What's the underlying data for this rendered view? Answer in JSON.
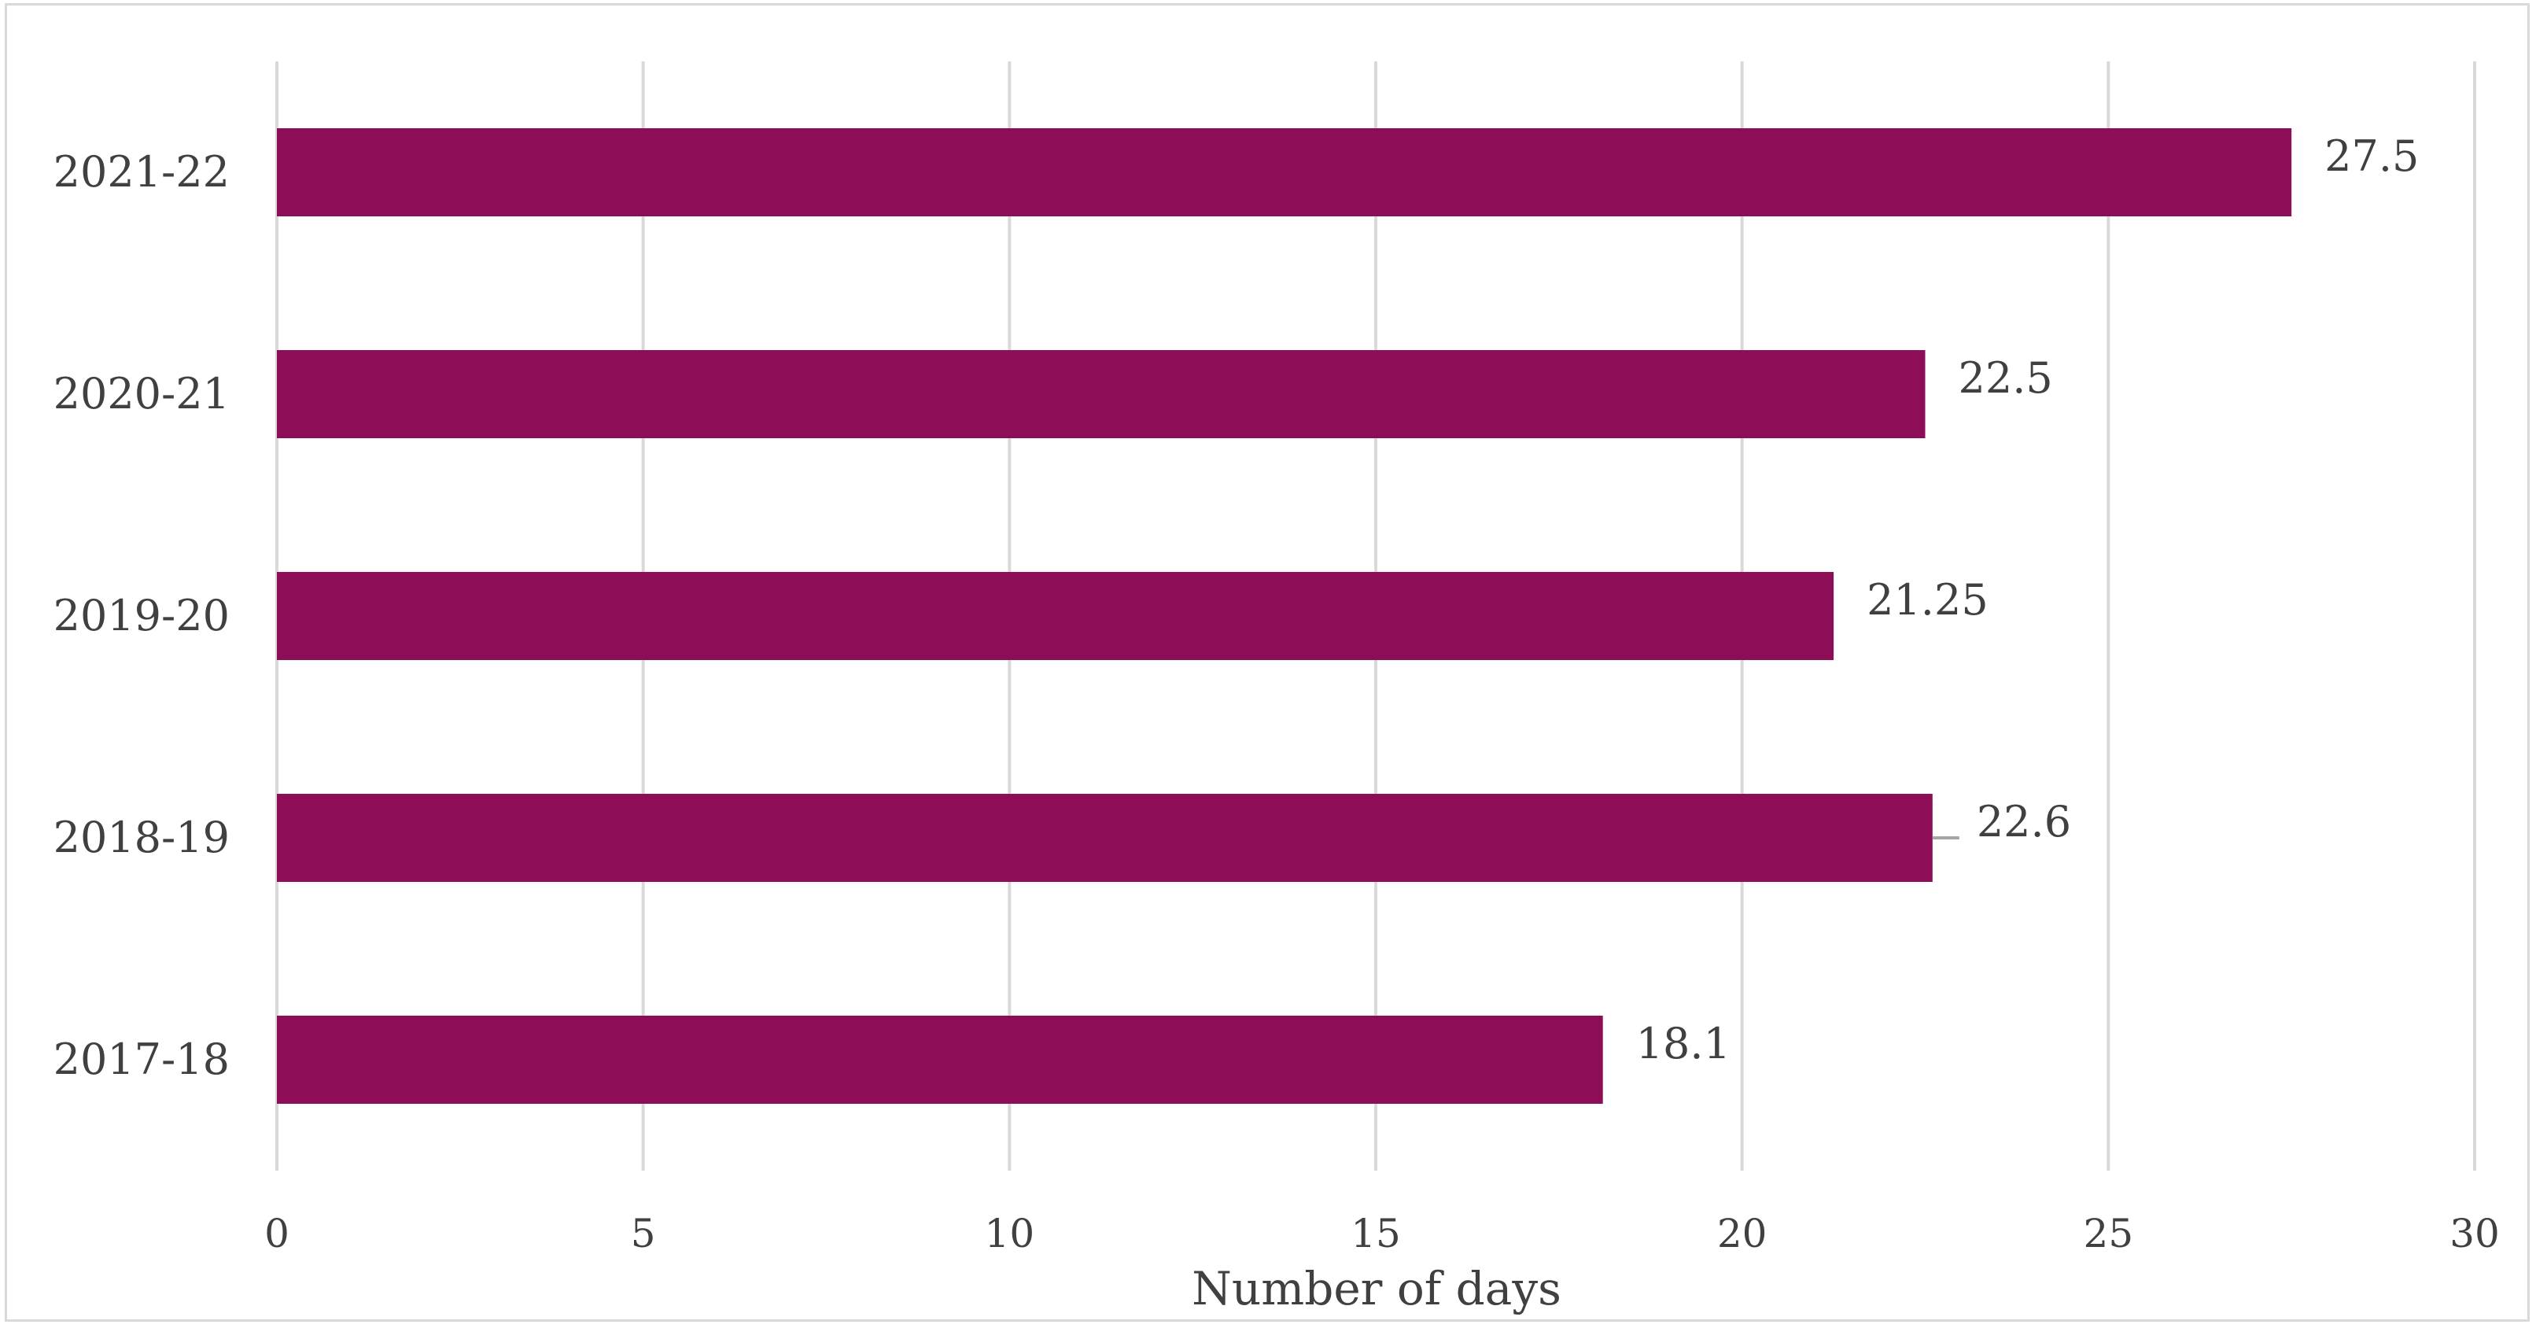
{
  "chart_data": {
    "type": "bar",
    "orientation": "horizontal",
    "categories": [
      "2017-18",
      "2018-19",
      "2019-20",
      "2020-21",
      "2021-22"
    ],
    "series": [
      {
        "values": [
          18.1,
          22.6,
          21.25,
          22.5,
          27.5
        ]
      }
    ],
    "data_labels": [
      "18.1",
      "22.6",
      "21.25",
      "22.5",
      "27.5"
    ],
    "xlabel": "Number of days",
    "ylabel": "",
    "xlim": [
      0,
      30
    ],
    "x_ticks": [
      0,
      5,
      10,
      15,
      20,
      25,
      30
    ],
    "grid": "vertical",
    "legend": "none",
    "bar_color": "#8d0e57",
    "grid_color": "#d9d9d9",
    "text_color": "#404040"
  }
}
